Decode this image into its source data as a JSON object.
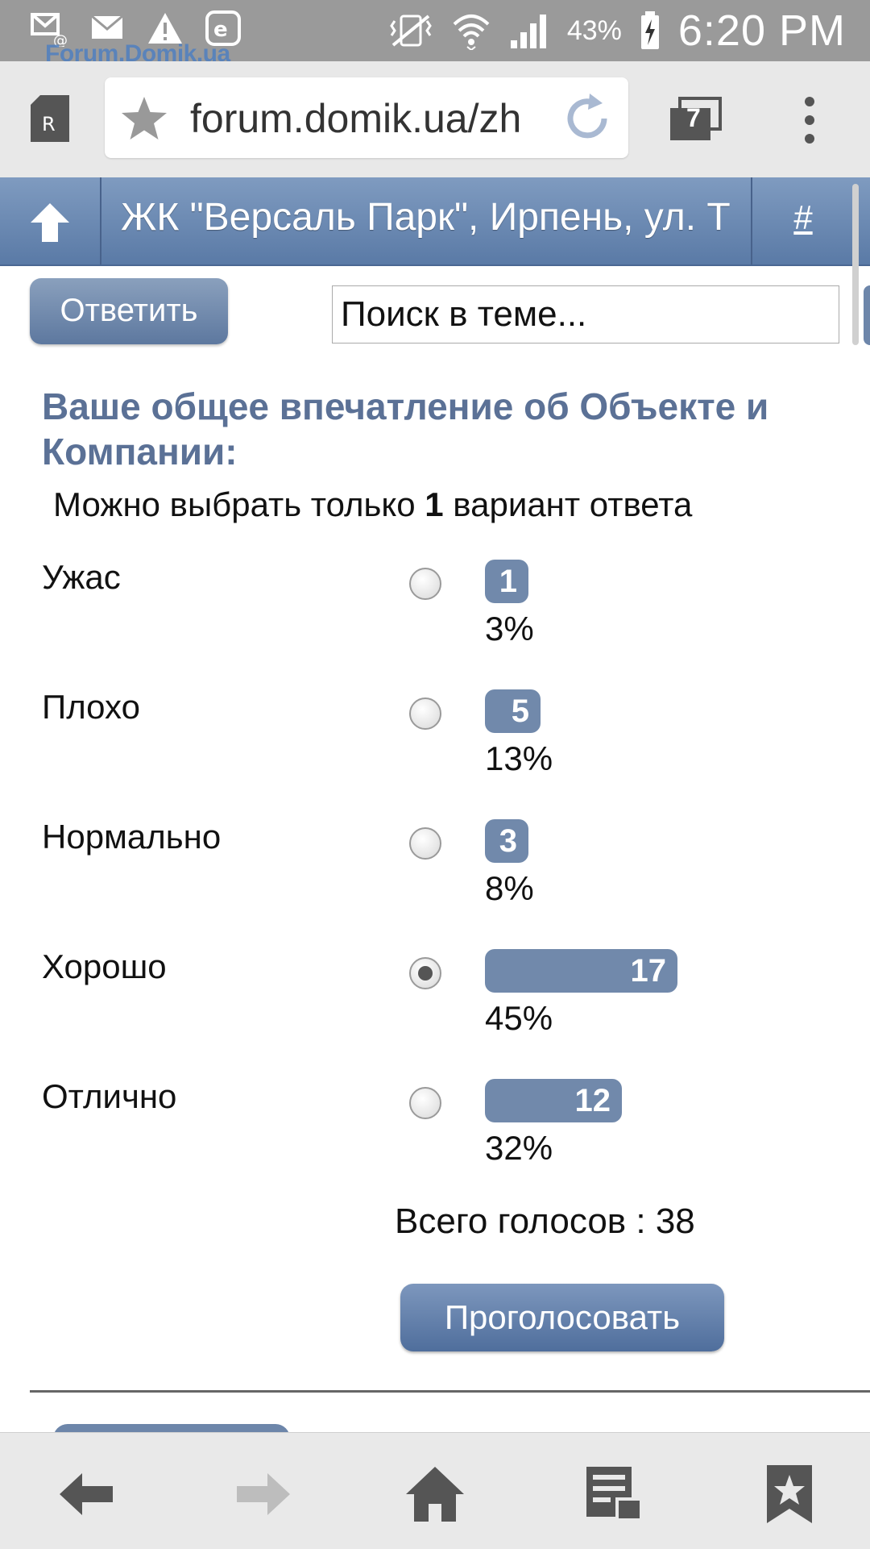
{
  "status_bar": {
    "battery_percent": "43%",
    "time": "6:20 PM",
    "left_icons": [
      "email-at-icon",
      "mail-icon",
      "warning-icon",
      "app-e-icon"
    ],
    "right_icons": [
      "vibrate-icon",
      "wifi-icon",
      "signal-icon",
      "battery-charging-icon"
    ]
  },
  "watermark": {
    "text": "Forum.Domik.ua",
    "dot_colors": [
      "#5b8fd6",
      "#e6d84a",
      "#d66a8a"
    ]
  },
  "browser": {
    "url": "forum.domik.ua/zh",
    "tab_count": "7"
  },
  "forum_header": {
    "thread_title": "ЖК \"Версаль Парк\", Ирпень, ул. Т",
    "hash_link": "#"
  },
  "toolbar": {
    "reply_label": "Ответить",
    "search_placeholder": "Поиск в теме..."
  },
  "poll": {
    "question": "Ваше общее впечатление об Объекте и Компании:",
    "hint_prefix": "Можно выбрать только ",
    "hint_count": "1",
    "hint_suffix": " вариант ответа",
    "options": [
      {
        "label": "Ужас",
        "votes": "1",
        "percent": "3%",
        "share": 0.03,
        "selected": false
      },
      {
        "label": "Плохо",
        "votes": "5",
        "percent": "13%",
        "share": 0.13,
        "selected": false
      },
      {
        "label": "Нормально",
        "votes": "3",
        "percent": "8%",
        "share": 0.08,
        "selected": false
      },
      {
        "label": "Хорошо",
        "votes": "17",
        "percent": "45%",
        "share": 0.45,
        "selected": true
      },
      {
        "label": "Отлично",
        "votes": "12",
        "percent": "32%",
        "share": 0.32,
        "selected": false
      }
    ],
    "total_votes": "Всего голосов : 38",
    "vote_label": "Проголосовать",
    "accent_color": "#5b7196",
    "bar_color": "#7189ab"
  },
  "bottom_nav": {
    "items": [
      "back-arrow-icon",
      "forward-arrow-icon",
      "home-icon",
      "saved-pages-icon",
      "bookmarks-icon"
    ]
  }
}
